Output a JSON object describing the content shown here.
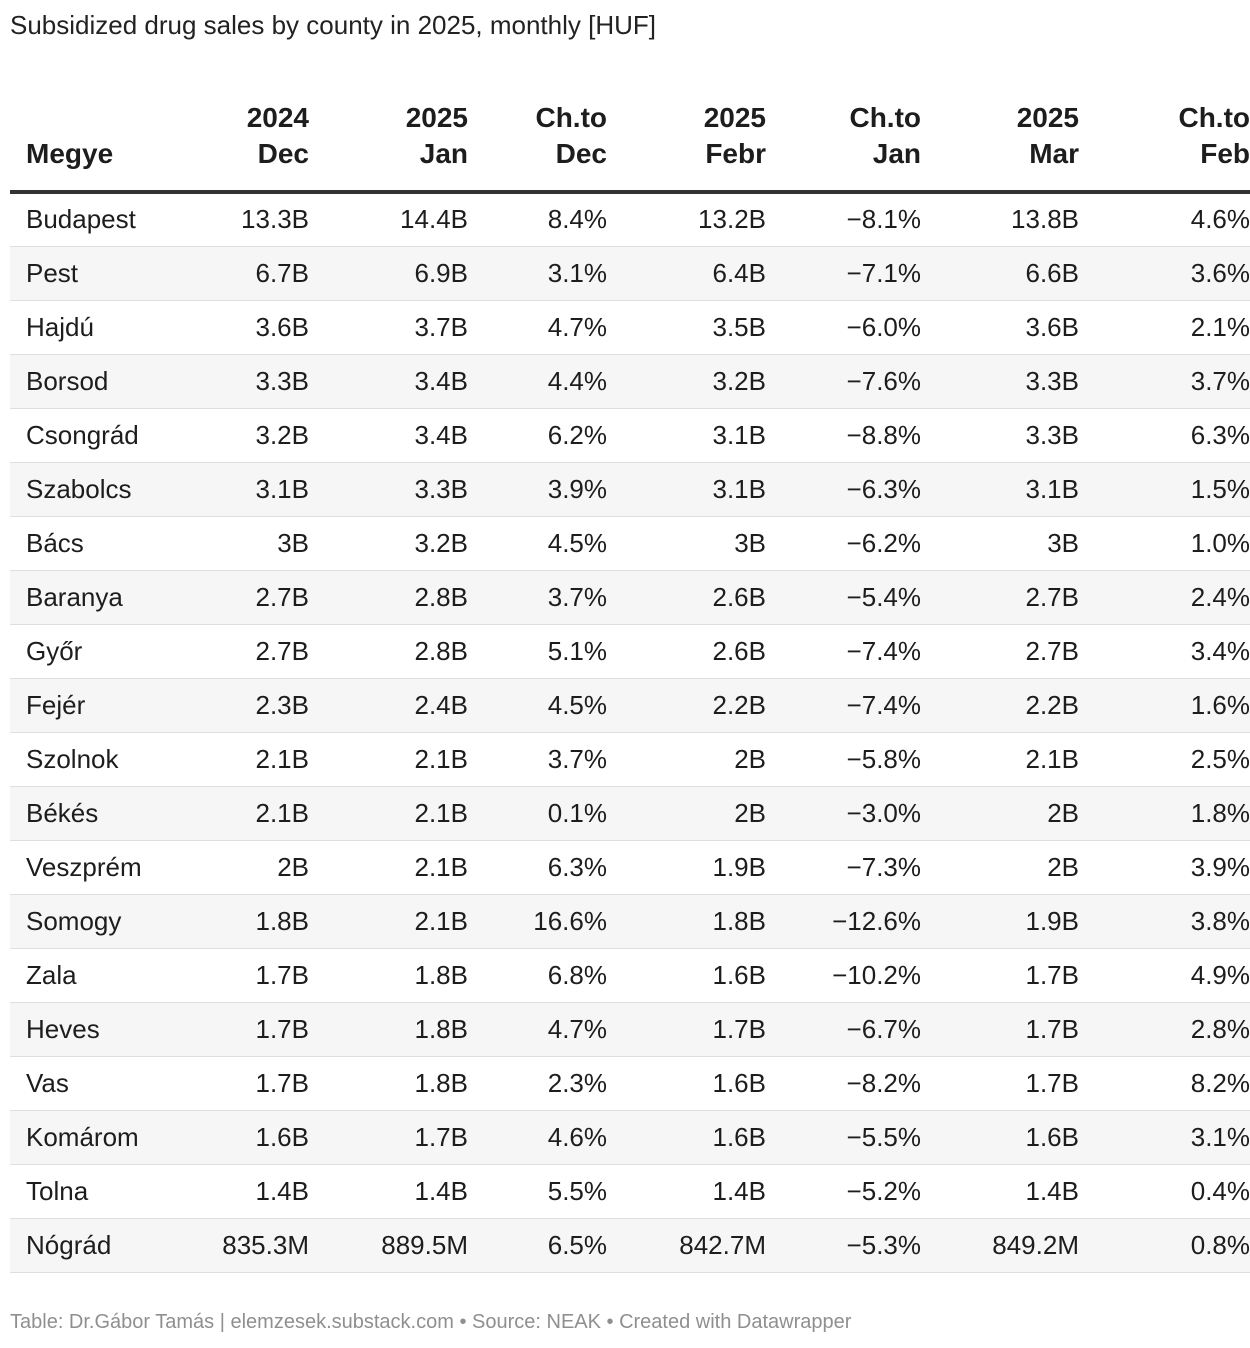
{
  "title": "Subsidized drug sales by county in 2025, monthly [HUF]",
  "footer": "Table: Dr.Gábor Tamás | elemzesek.substack.com • Source: NEAK • Created with Datawrapper",
  "chart_data": {
    "type": "table",
    "title": "Subsidized drug sales by county in 2025, monthly [HUF]",
    "columns": [
      {
        "l1": "",
        "l2": "Megye"
      },
      {
        "l1": "2024",
        "l2": "Dec"
      },
      {
        "l1": "2025",
        "l2": "Jan"
      },
      {
        "l1": "Ch.to",
        "l2": "Dec"
      },
      {
        "l1": "2025",
        "l2": "Febr"
      },
      {
        "l1": "Ch.to",
        "l2": "Jan"
      },
      {
        "l1": "2025",
        "l2": "Mar"
      },
      {
        "l1": "Ch.to",
        "l2": "Feb"
      }
    ],
    "rows": [
      [
        "Budapest",
        "13.3B",
        "14.4B",
        "8.4%",
        "13.2B",
        "−8.1%",
        "13.8B",
        "4.6%"
      ],
      [
        "Pest",
        "6.7B",
        "6.9B",
        "3.1%",
        "6.4B",
        "−7.1%",
        "6.6B",
        "3.6%"
      ],
      [
        "Hajdú",
        "3.6B",
        "3.7B",
        "4.7%",
        "3.5B",
        "−6.0%",
        "3.6B",
        "2.1%"
      ],
      [
        "Borsod",
        "3.3B",
        "3.4B",
        "4.4%",
        "3.2B",
        "−7.6%",
        "3.3B",
        "3.7%"
      ],
      [
        "Csongrád",
        "3.2B",
        "3.4B",
        "6.2%",
        "3.1B",
        "−8.8%",
        "3.3B",
        "6.3%"
      ],
      [
        "Szabolcs",
        "3.1B",
        "3.3B",
        "3.9%",
        "3.1B",
        "−6.3%",
        "3.1B",
        "1.5%"
      ],
      [
        "Bács",
        "3B",
        "3.2B",
        "4.5%",
        "3B",
        "−6.2%",
        "3B",
        "1.0%"
      ],
      [
        "Baranya",
        "2.7B",
        "2.8B",
        "3.7%",
        "2.6B",
        "−5.4%",
        "2.7B",
        "2.4%"
      ],
      [
        "Győr",
        "2.7B",
        "2.8B",
        "5.1%",
        "2.6B",
        "−7.4%",
        "2.7B",
        "3.4%"
      ],
      [
        "Fejér",
        "2.3B",
        "2.4B",
        "4.5%",
        "2.2B",
        "−7.4%",
        "2.2B",
        "1.6%"
      ],
      [
        "Szolnok",
        "2.1B",
        "2.1B",
        "3.7%",
        "2B",
        "−5.8%",
        "2.1B",
        "2.5%"
      ],
      [
        "Békés",
        "2.1B",
        "2.1B",
        "0.1%",
        "2B",
        "−3.0%",
        "2B",
        "1.8%"
      ],
      [
        "Veszprém",
        "2B",
        "2.1B",
        "6.3%",
        "1.9B",
        "−7.3%",
        "2B",
        "3.9%"
      ],
      [
        "Somogy",
        "1.8B",
        "2.1B",
        "16.6%",
        "1.8B",
        "−12.6%",
        "1.9B",
        "3.8%"
      ],
      [
        "Zala",
        "1.7B",
        "1.8B",
        "6.8%",
        "1.6B",
        "−10.2%",
        "1.7B",
        "4.9%"
      ],
      [
        "Heves",
        "1.7B",
        "1.8B",
        "4.7%",
        "1.7B",
        "−6.7%",
        "1.7B",
        "2.8%"
      ],
      [
        "Vas",
        "1.7B",
        "1.8B",
        "2.3%",
        "1.6B",
        "−8.2%",
        "1.7B",
        "8.2%"
      ],
      [
        "Komárom",
        "1.6B",
        "1.7B",
        "4.6%",
        "1.6B",
        "−5.5%",
        "1.6B",
        "3.1%"
      ],
      [
        "Tolna",
        "1.4B",
        "1.4B",
        "5.5%",
        "1.4B",
        "−5.2%",
        "1.4B",
        "0.4%"
      ],
      [
        "Nógrád",
        "835.3M",
        "889.5M",
        "6.5%",
        "842.7M",
        "−5.3%",
        "849.2M",
        "0.8%"
      ]
    ]
  }
}
